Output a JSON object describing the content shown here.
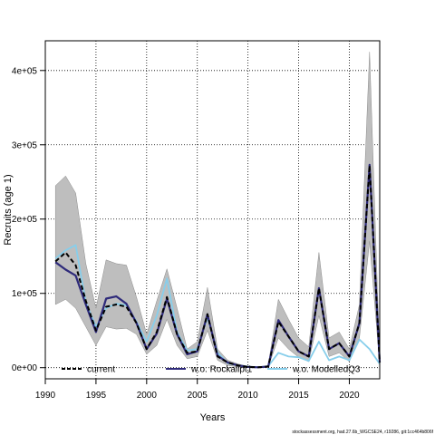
{
  "chart_data": {
    "type": "line",
    "xlabel": "Years",
    "ylabel": "Recruits (age 1)",
    "xlim": [
      1990,
      2023
    ],
    "ylim": [
      -15000,
      440000
    ],
    "x_ticks": [
      1990,
      1995,
      2000,
      2005,
      2010,
      2015,
      2020
    ],
    "y_ticks": [
      {
        "value": 0,
        "label": "0e+00"
      },
      {
        "value": 100000,
        "label": "1e+05"
      },
      {
        "value": 200000,
        "label": "2e+05"
      },
      {
        "value": 300000,
        "label": "3e+05"
      },
      {
        "value": 400000,
        "label": "4e+05"
      }
    ],
    "grid": true,
    "legend_placement": "bottom",
    "x": [
      1991,
      1992,
      1993,
      1994,
      1995,
      1996,
      1997,
      1998,
      1999,
      2000,
      2001,
      2002,
      2003,
      2004,
      2005,
      2006,
      2007,
      2008,
      2009,
      2010,
      2011,
      2012,
      2013,
      2014,
      2015,
      2016,
      2017,
      2018,
      2019,
      2020,
      2021,
      2022,
      2023
    ],
    "series": [
      {
        "name": "current",
        "color": "#000000",
        "style": "dashed",
        "values": [
          143000,
          155000,
          138000,
          90000,
          50000,
          82000,
          85000,
          82000,
          60000,
          25000,
          48000,
          95000,
          45000,
          20000,
          22000,
          72000,
          15000,
          7000,
          3000,
          1000,
          500,
          1500,
          62000,
          42000,
          22000,
          15000,
          107000,
          25000,
          33000,
          15000,
          60000,
          272000,
          7000
        ]
      },
      {
        "name": "w.o. Rockallpt1",
        "color": "#2e2a7a",
        "style": "solid",
        "values": [
          142000,
          132000,
          124000,
          85000,
          48000,
          93000,
          96000,
          86000,
          60000,
          25000,
          46000,
          93000,
          45000,
          18000,
          22000,
          72000,
          16000,
          7000,
          3000,
          1000,
          500,
          1500,
          64000,
          42000,
          22000,
          15000,
          107000,
          25000,
          33000,
          15000,
          60000,
          273000,
          7000
        ]
      },
      {
        "name": "w.o. ModelledQ3",
        "color": "#87ceeb",
        "style": "solid",
        "values": [
          147000,
          158000,
          165000,
          88000,
          55000,
          80000,
          86000,
          84000,
          62000,
          35000,
          70000,
          120000,
          48000,
          23000,
          25000,
          68000,
          20000,
          6000,
          3000,
          1500,
          500,
          2000,
          20000,
          15000,
          14000,
          9000,
          35000,
          10000,
          15000,
          10000,
          38000,
          25000,
          5000
        ]
      }
    ],
    "confidence_band": {
      "color": "#bebebe",
      "upper": [
        245000,
        258000,
        235000,
        140000,
        80000,
        145000,
        140000,
        138000,
        95000,
        45000,
        90000,
        133000,
        80000,
        25000,
        35000,
        108000,
        25000,
        10000,
        5000,
        2000,
        1000,
        3000,
        92000,
        65000,
        40000,
        28000,
        155000,
        40000,
        48000,
        25000,
        85000,
        425000,
        12000
      ],
      "lower": [
        85000,
        92000,
        80000,
        55000,
        30000,
        55000,
        52000,
        53000,
        45000,
        18000,
        30000,
        65000,
        30000,
        12000,
        15000,
        50000,
        10000,
        3000,
        1000,
        500,
        200,
        1000,
        40000,
        25000,
        14000,
        8000,
        70000,
        15000,
        20000,
        8000,
        40000,
        170000,
        3000
      ]
    }
  },
  "footnote": "stockassessment.org, had.27.6b_WGCSE24, r19286, git:1cc464b806f"
}
